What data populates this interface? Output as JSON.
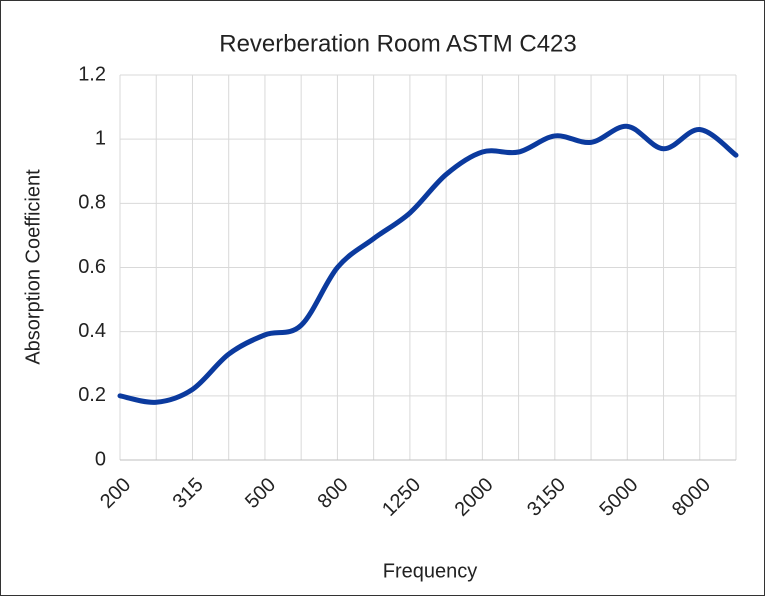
{
  "chart_data": {
    "type": "line",
    "title": "Reverberation Room ASTM C423",
    "x_label": "Frequency",
    "y_label": "Absorption Coefficient",
    "categories": [
      "200",
      null,
      "315",
      null,
      "500",
      null,
      "800",
      null,
      "1250",
      null,
      "2000",
      null,
      "3150",
      null,
      "5000",
      null,
      "8000",
      null
    ],
    "series": [
      {
        "name": "Absorption Coefficient",
        "color": "#0b3a9e",
        "values": [
          0.2,
          0.18,
          0.22,
          0.33,
          0.39,
          0.42,
          0.6,
          0.69,
          0.77,
          0.89,
          0.96,
          0.96,
          1.01,
          0.99,
          1.04,
          0.97,
          1.03,
          0.95
        ]
      }
    ],
    "ylim": [
      0,
      1.2
    ],
    "yticks": [
      0,
      0.2,
      0.4,
      0.6,
      0.8,
      1,
      1.2
    ],
    "grid": true
  }
}
